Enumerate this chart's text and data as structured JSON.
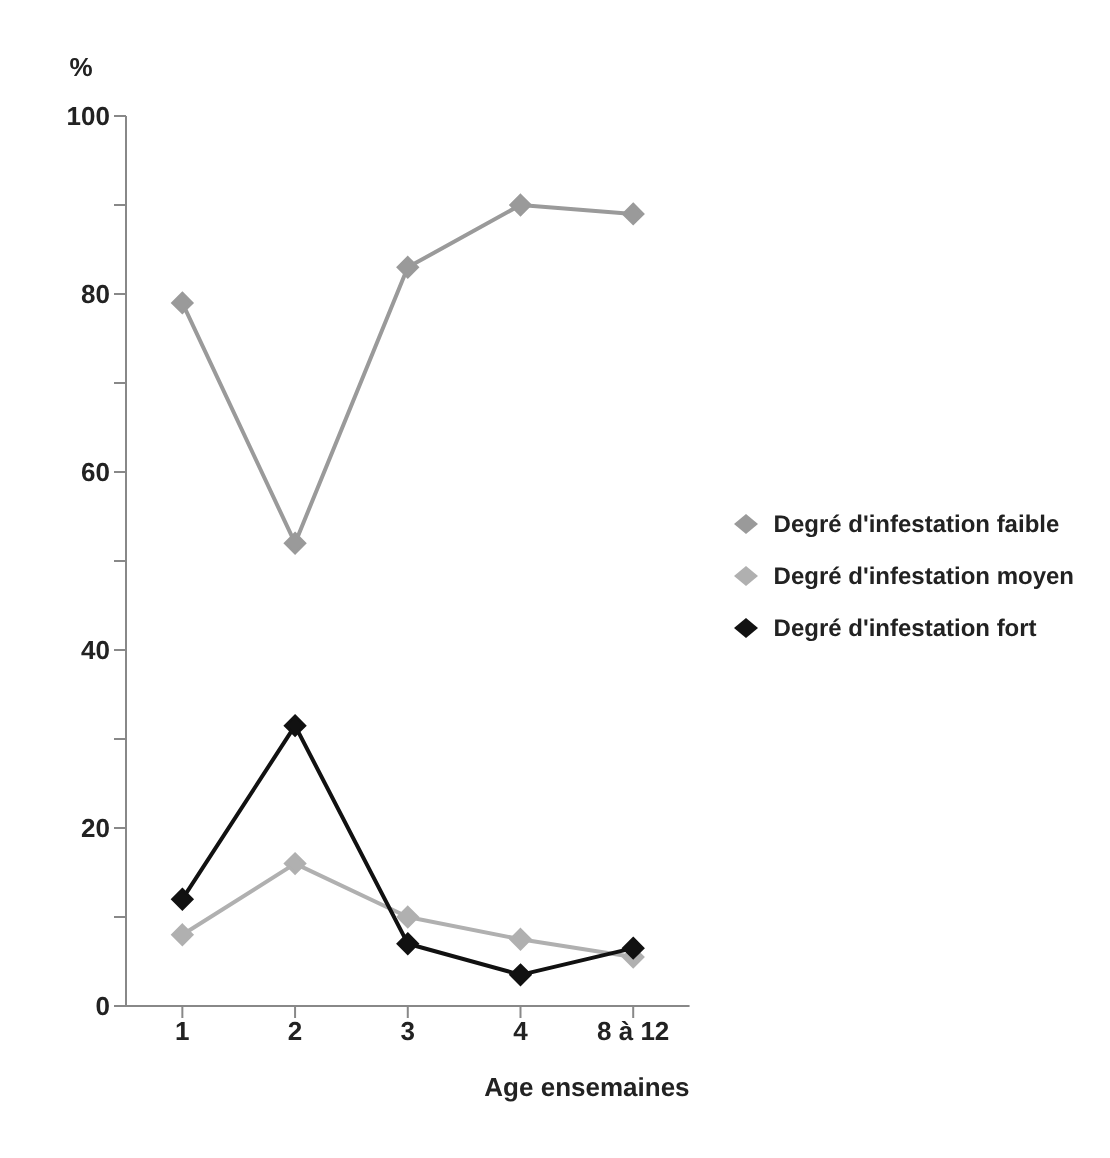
{
  "chart_data": {
    "type": "line",
    "xlabel": "Age ensemaines",
    "ylabel": "%",
    "categories": [
      "1",
      "2",
      "3",
      "4",
      "8 à 12"
    ],
    "series": [
      {
        "name": "Degré d'infestation faible",
        "color": "#9a9a9a",
        "values": [
          79,
          52,
          83,
          90,
          89
        ]
      },
      {
        "name": "Degré d'infestation moyen",
        "color": "#b0b0b0",
        "values": [
          8,
          16,
          10,
          7.5,
          5.5
        ]
      },
      {
        "name": "Degré d'infestation fort",
        "color": "#111111",
        "values": [
          12,
          31.5,
          7,
          3.5,
          6.5
        ]
      }
    ],
    "ylim": [
      0,
      100
    ],
    "yticks": [
      0,
      {
        "value": 10,
        "label": null
      },
      20,
      {
        "value": 30,
        "label": null
      },
      40,
      {
        "value": 50,
        "label": null
      },
      60,
      {
        "value": 70,
        "label": null
      },
      80,
      {
        "value": 90,
        "label": null
      },
      100
    ],
    "marker": "diamond",
    "legend": "right",
    "grid": false
  }
}
